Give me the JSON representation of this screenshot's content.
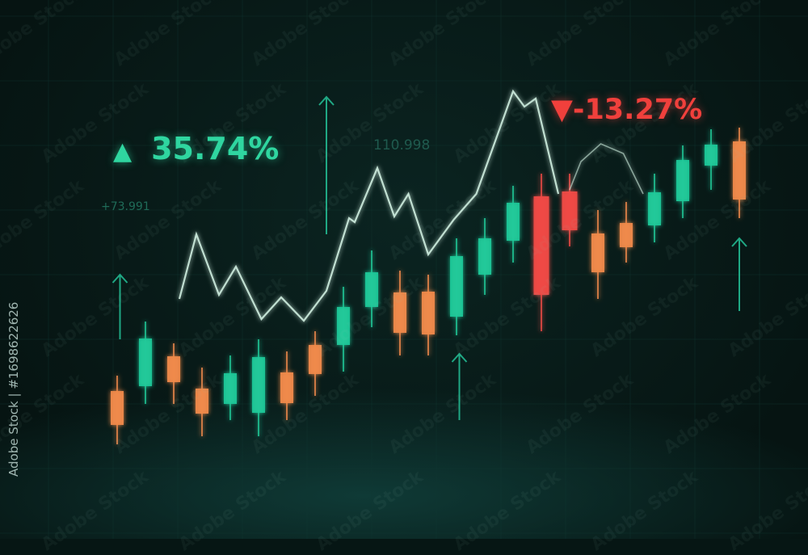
{
  "labels": {
    "gain_symbol": "▲",
    "gain_percent": "35.74%",
    "loss_label": "▼-13.27%",
    "small_value_left": "+73.991",
    "small_value_top": "110.998",
    "side_text": "Adobe Stock | #1698622626",
    "watermark": "Adobe Stock"
  },
  "colors": {
    "bull": "#1fc999",
    "bear": "#f08a4b",
    "bear_strong": "#f04a45",
    "line": "#cfeee0",
    "background": "#061614"
  },
  "chart_data": {
    "type": "candlestick",
    "title": "",
    "xlabel": "",
    "ylabel": "",
    "ylim": [
      0,
      100
    ],
    "grid": true,
    "candles": [
      {
        "i": 1,
        "open": 23.2,
        "high": 27,
        "low": 10,
        "close": 14.8
      },
      {
        "i": 2,
        "open": 24.4,
        "high": 40.4,
        "low": 20,
        "close": 36.2
      },
      {
        "i": 3,
        "open": 31.8,
        "high": 35,
        "low": 20,
        "close": 25.4
      },
      {
        "i": 4,
        "open": 23.8,
        "high": 29,
        "low": 12,
        "close": 17.6
      },
      {
        "i": 5,
        "open": 20,
        "high": 32,
        "low": 16,
        "close": 27.6
      },
      {
        "i": 6,
        "open": 17.8,
        "high": 36,
        "low": 12,
        "close": 31.6
      },
      {
        "i": 7,
        "open": 27.8,
        "high": 33,
        "low": 16,
        "close": 20.2
      },
      {
        "i": 8,
        "open": 34.6,
        "high": 38,
        "low": 22,
        "close": 27.4
      },
      {
        "i": 9,
        "open": 34.6,
        "high": 49,
        "low": 28,
        "close": 44
      },
      {
        "i": 10,
        "open": 44,
        "high": 58,
        "low": 39,
        "close": 52.6
      },
      {
        "i": 11,
        "open": 47.6,
        "high": 53,
        "low": 32,
        "close": 37.6
      },
      {
        "i": 12,
        "open": 47.8,
        "high": 52,
        "low": 32,
        "close": 37.2
      },
      {
        "i": 13,
        "open": 41.6,
        "high": 61,
        "low": 37,
        "close": 56.6
      },
      {
        "i": 14,
        "open": 52,
        "high": 66,
        "low": 47,
        "close": 61
      },
      {
        "i": 15,
        "open": 60.4,
        "high": 74,
        "low": 55,
        "close": 69.8
      },
      {
        "i": 16,
        "open": 71.4,
        "high": 77,
        "low": 38,
        "close": 47,
        "strong": true
      },
      {
        "i": 17,
        "open": 72.6,
        "high": 77,
        "low": 59,
        "close": 63,
        "strong": true
      },
      {
        "i": 18,
        "open": 62.2,
        "high": 68,
        "low": 46,
        "close": 52.6
      },
      {
        "i": 19,
        "open": 64.8,
        "high": 70,
        "low": 55,
        "close": 58.8
      },
      {
        "i": 20,
        "open": 64.2,
        "high": 77,
        "low": 60,
        "close": 72.4
      },
      {
        "i": 21,
        "open": 70.2,
        "high": 84,
        "low": 66,
        "close": 80.4
      },
      {
        "i": 22,
        "open": 79,
        "high": 88,
        "low": 73,
        "close": 84.2
      },
      {
        "i": 23,
        "open": 85,
        "high": 88.4,
        "low": 66,
        "close": 70.6
      }
    ],
    "line_segments": [
      [
        [
          3.2,
          46
        ],
        [
          3.8,
          62
        ],
        [
          4.6,
          47
        ],
        [
          5.2,
          54
        ],
        [
          6.1,
          41
        ],
        [
          6.8,
          46.4
        ],
        [
          7.6,
          40.6
        ],
        [
          8.4,
          48
        ],
        [
          9.2,
          66
        ],
        [
          9.4,
          65
        ],
        [
          10.2,
          78.4
        ],
        [
          10.8,
          66.4
        ],
        [
          11.3,
          72
        ],
        [
          12,
          57
        ],
        [
          12.9,
          65.6
        ],
        [
          13.7,
          72
        ],
        [
          15,
          97.4
        ],
        [
          15.4,
          93.6
        ],
        [
          15.8,
          95.6
        ],
        [
          16.6,
          72
        ]
      ],
      [
        [
          17,
          73
        ],
        [
          17.4,
          80
        ],
        [
          18.1,
          84.4
        ],
        [
          18.9,
          82
        ],
        [
          19.6,
          72
        ]
      ]
    ],
    "arrows": [
      {
        "i": 1.1,
        "from": 36,
        "to": 52
      },
      {
        "i": 8.4,
        "from": 62,
        "to": 96
      },
      {
        "i": 13.1,
        "from": 16,
        "to": 32.4
      },
      {
        "i": 23,
        "from": 43,
        "to": 61
      }
    ]
  }
}
